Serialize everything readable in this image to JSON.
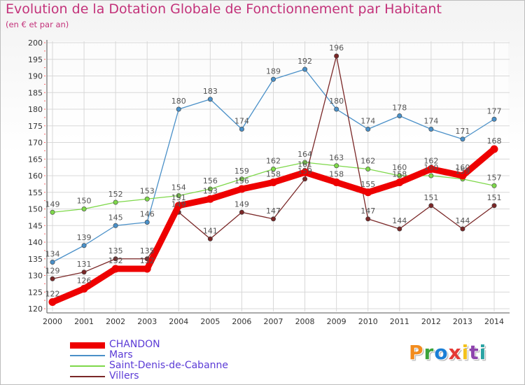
{
  "header": {
    "title": "Evolution de la Dotation Globale de Fonctionnement par Habitant",
    "subtitle": "(en € et par an)"
  },
  "brand": {
    "text": "Proxiti",
    "colors": [
      "#f28c1e",
      "#3aa33a",
      "#1a7fd6",
      "#e53935",
      "#f4c21b",
      "#8e44ad",
      "#29a3a3"
    ]
  },
  "chart_data": {
    "type": "line",
    "title": "Evolution de la Dotation Globale de Fonctionnement par Habitant",
    "subtitle": "(en € et par an)",
    "xlabel": "",
    "ylabel": "",
    "x": [
      "2000",
      "2001",
      "2002",
      "2003",
      "2004",
      "2005",
      "2006",
      "2007",
      "2008",
      "2009",
      "2010",
      "2011",
      "2012",
      "2013",
      "2014"
    ],
    "yticks": [
      120,
      125,
      130,
      135,
      140,
      145,
      150,
      155,
      160,
      165,
      170,
      175,
      180,
      185,
      190,
      195,
      200
    ],
    "ylim": [
      120,
      200
    ],
    "grid": true,
    "legend_position": "bottom-left",
    "series": [
      {
        "name": "CHANDON",
        "color": "#ee0000",
        "values": [
          122,
          126,
          132,
          132,
          151,
          153,
          156,
          158,
          161,
          158,
          155,
          158,
          162,
          160,
          168
        ],
        "labels": [
          "122",
          "126",
          "132",
          "132",
          "151",
          "153",
          "156",
          "158",
          "161",
          "158",
          "155",
          "158",
          "162",
          "160",
          "168"
        ]
      },
      {
        "name": "Mars",
        "color": "#4a90c8",
        "values": [
          134,
          139,
          145,
          146,
          180,
          183,
          174,
          189,
          192,
          180,
          174,
          178,
          174,
          171,
          177
        ],
        "labels": [
          "134",
          "139",
          "145",
          "146",
          "180",
          "183",
          "174",
          "189",
          "192",
          "180",
          "174",
          "178",
          "174",
          "171",
          "177"
        ]
      },
      {
        "name": "Saint-Denis-de-Cabanne",
        "color": "#7ed84a",
        "values": [
          149,
          150,
          152,
          153,
          154,
          156,
          159,
          162,
          164,
          163,
          162,
          160,
          160,
          159,
          157
        ],
        "labels": [
          "149",
          "150",
          "152",
          "153",
          "154",
          "156",
          "159",
          "162",
          "164",
          "163",
          "162",
          "160",
          "160",
          "159",
          "157"
        ]
      },
      {
        "name": "Villers",
        "color": "#7a2727",
        "values": [
          129,
          131,
          135,
          135,
          149,
          141,
          149,
          147,
          159,
          196,
          147,
          144,
          151,
          144,
          151
        ],
        "labels": [
          "129",
          "131",
          "135",
          "135",
          "149",
          "141",
          "149",
          "147",
          "159",
          "196",
          "147",
          "144",
          "151",
          "144",
          "151"
        ]
      }
    ]
  }
}
